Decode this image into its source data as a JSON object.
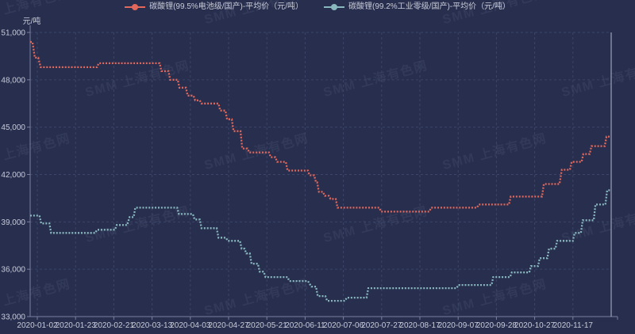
{
  "page": {
    "watermark_text": "SMM 上海有色网"
  },
  "colors": {
    "background": "#272e4e",
    "grid": "#3d4568",
    "axis": "#7b81a0",
    "text": "#c9ccd8",
    "plot_right_border": "#9ca2b8",
    "series_battery": "#e2685b",
    "series_industrial": "#88b7be"
  },
  "chart_data": {
    "type": "line",
    "subtype": "step-dotted",
    "title": "",
    "xlabel": "",
    "ylabel": "元/吨",
    "ylim": [
      33000,
      51000
    ],
    "yticks": [
      51000,
      48000,
      45000,
      42000,
      39000,
      36000,
      33000
    ],
    "ytick_labels": [
      "51,000",
      "48,000",
      "45,000",
      "42,000",
      "39,000",
      "36,000",
      "33,000"
    ],
    "xtick_labels": [
      "2020-01-02",
      "2020-01-23",
      "2020-02-21",
      "2020-03-13",
      "2020-04-03",
      "2020-04-27",
      "2020-05-21",
      "2020-06-11",
      "2020-07-06",
      "2020-07-27",
      "2020-08-17",
      "2020-09-07",
      "2020-09-28",
      "2020-10-27",
      "2020-11-17"
    ],
    "grid": true,
    "legend_position": "top-center",
    "series": [
      {
        "name": "碳酸锂(99.5%电池级/国产)-平均价（元/吨）",
        "color": "#e2685b",
        "points": [
          [
            0.0,
            50400
          ],
          [
            0.004,
            50400
          ],
          [
            0.008,
            49400
          ],
          [
            0.014,
            49400
          ],
          [
            0.018,
            48800
          ],
          [
            0.115,
            48800
          ],
          [
            0.118,
            49050
          ],
          [
            0.223,
            49050
          ],
          [
            0.226,
            48550
          ],
          [
            0.238,
            48550
          ],
          [
            0.241,
            48000
          ],
          [
            0.254,
            48000
          ],
          [
            0.257,
            47500
          ],
          [
            0.268,
            47500
          ],
          [
            0.271,
            47000
          ],
          [
            0.281,
            47000
          ],
          [
            0.284,
            46700
          ],
          [
            0.292,
            46700
          ],
          [
            0.295,
            46500
          ],
          [
            0.324,
            46500
          ],
          [
            0.327,
            46050
          ],
          [
            0.336,
            46050
          ],
          [
            0.339,
            45500
          ],
          [
            0.347,
            45500
          ],
          [
            0.35,
            44750
          ],
          [
            0.362,
            44750
          ],
          [
            0.365,
            43650
          ],
          [
            0.374,
            43650
          ],
          [
            0.377,
            43400
          ],
          [
            0.411,
            43400
          ],
          [
            0.414,
            43100
          ],
          [
            0.422,
            43100
          ],
          [
            0.425,
            42800
          ],
          [
            0.44,
            42800
          ],
          [
            0.443,
            42250
          ],
          [
            0.478,
            42250
          ],
          [
            0.481,
            41950
          ],
          [
            0.489,
            41950
          ],
          [
            0.492,
            41500
          ],
          [
            0.494,
            41500
          ],
          [
            0.497,
            40900
          ],
          [
            0.504,
            40900
          ],
          [
            0.507,
            40650
          ],
          [
            0.514,
            40650
          ],
          [
            0.517,
            40450
          ],
          [
            0.526,
            40450
          ],
          [
            0.529,
            39900
          ],
          [
            0.601,
            39900
          ],
          [
            0.604,
            39650
          ],
          [
            0.687,
            39650
          ],
          [
            0.69,
            39900
          ],
          [
            0.769,
            39900
          ],
          [
            0.772,
            40100
          ],
          [
            0.824,
            40100
          ],
          [
            0.827,
            40600
          ],
          [
            0.881,
            40600
          ],
          [
            0.884,
            41400
          ],
          [
            0.911,
            41400
          ],
          [
            0.915,
            42300
          ],
          [
            0.929,
            42300
          ],
          [
            0.932,
            42800
          ],
          [
            0.949,
            42800
          ],
          [
            0.952,
            43300
          ],
          [
            0.963,
            43300
          ],
          [
            0.966,
            43800
          ],
          [
            0.989,
            43800
          ],
          [
            0.992,
            44400
          ],
          [
            1.0,
            44400
          ]
        ]
      },
      {
        "name": "碳酸锂(99.2%工业零级/国产)-平均价（元/吨）",
        "color": "#88b7be",
        "points": [
          [
            0.0,
            39400
          ],
          [
            0.016,
            39400
          ],
          [
            0.019,
            38900
          ],
          [
            0.033,
            38900
          ],
          [
            0.036,
            38300
          ],
          [
            0.112,
            38300
          ],
          [
            0.115,
            38500
          ],
          [
            0.146,
            38500
          ],
          [
            0.149,
            38800
          ],
          [
            0.167,
            38800
          ],
          [
            0.171,
            39300
          ],
          [
            0.178,
            39300
          ],
          [
            0.181,
            39900
          ],
          [
            0.253,
            39900
          ],
          [
            0.256,
            39500
          ],
          [
            0.28,
            39500
          ],
          [
            0.283,
            39150
          ],
          [
            0.292,
            39150
          ],
          [
            0.295,
            38600
          ],
          [
            0.321,
            38600
          ],
          [
            0.324,
            38000
          ],
          [
            0.337,
            38000
          ],
          [
            0.34,
            37800
          ],
          [
            0.361,
            37800
          ],
          [
            0.364,
            37300
          ],
          [
            0.369,
            37300
          ],
          [
            0.372,
            37000
          ],
          [
            0.378,
            37000
          ],
          [
            0.381,
            36350
          ],
          [
            0.392,
            36350
          ],
          [
            0.395,
            35850
          ],
          [
            0.402,
            35850
          ],
          [
            0.405,
            35500
          ],
          [
            0.443,
            35500
          ],
          [
            0.446,
            35250
          ],
          [
            0.478,
            35250
          ],
          [
            0.484,
            34900
          ],
          [
            0.492,
            34900
          ],
          [
            0.495,
            34300
          ],
          [
            0.508,
            34300
          ],
          [
            0.511,
            34000
          ],
          [
            0.542,
            34000
          ],
          [
            0.545,
            34200
          ],
          [
            0.579,
            34200
          ],
          [
            0.582,
            34800
          ],
          [
            0.734,
            34800
          ],
          [
            0.737,
            35000
          ],
          [
            0.794,
            35000
          ],
          [
            0.797,
            35500
          ],
          [
            0.826,
            35500
          ],
          [
            0.829,
            35800
          ],
          [
            0.859,
            35800
          ],
          [
            0.862,
            36200
          ],
          [
            0.874,
            36200
          ],
          [
            0.877,
            36700
          ],
          [
            0.89,
            36700
          ],
          [
            0.893,
            37300
          ],
          [
            0.904,
            37300
          ],
          [
            0.907,
            37800
          ],
          [
            0.934,
            37800
          ],
          [
            0.937,
            38300
          ],
          [
            0.948,
            38300
          ],
          [
            0.951,
            39100
          ],
          [
            0.97,
            39100
          ],
          [
            0.973,
            40100
          ],
          [
            0.99,
            40100
          ],
          [
            0.993,
            41000
          ],
          [
            1.0,
            41000
          ]
        ]
      }
    ]
  }
}
